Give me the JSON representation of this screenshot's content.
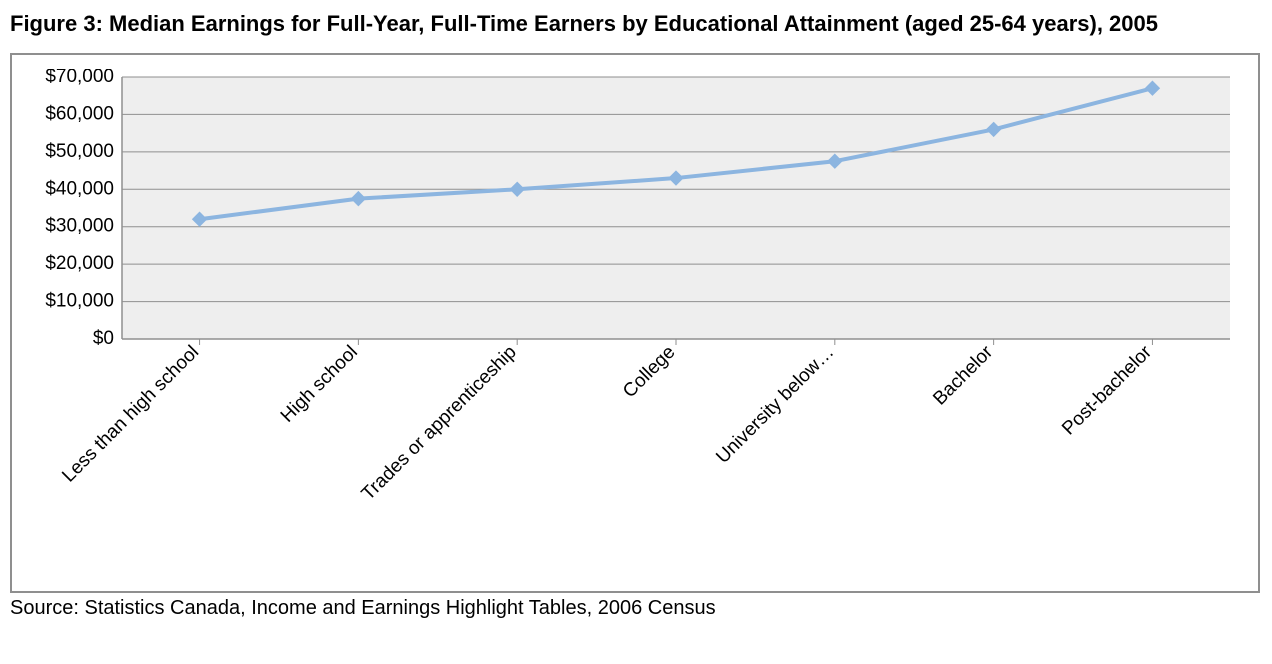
{
  "title": "Figure 3: Median Earnings for Full-Year, Full-Time Earners by Educational Attainment (aged 25-64 years), 2005",
  "source": "Source: Statistics Canada, Income and Earnings Highlight Tables, 2006 Census",
  "chart": {
    "type": "line",
    "categories": [
      "Less than high school",
      "High school",
      "Trades or apprenticeship",
      "College",
      "University below…",
      "Bachelor",
      "Post-bachelor"
    ],
    "values": [
      32000,
      37500,
      40000,
      43000,
      47500,
      56000,
      67000
    ],
    "ylim": [
      0,
      70000
    ],
    "ytick_step": 10000,
    "y_tick_labels": [
      "$0",
      "$10,000",
      "$20,000",
      "$30,000",
      "$40,000",
      "$50,000",
      "$60,000",
      "$70,000"
    ],
    "line_color": "#8cb5e0",
    "line_width": 4,
    "marker_color": "#8cb5e0",
    "marker_size": 7,
    "marker_shape": "diamond",
    "plot_background": "#eeeeee",
    "grid_color": "#8f8f8f",
    "axis_color": "#8f8f8f",
    "title_fontsize": 22,
    "tick_fontsize": 19,
    "x_label_rotation": -45
  }
}
